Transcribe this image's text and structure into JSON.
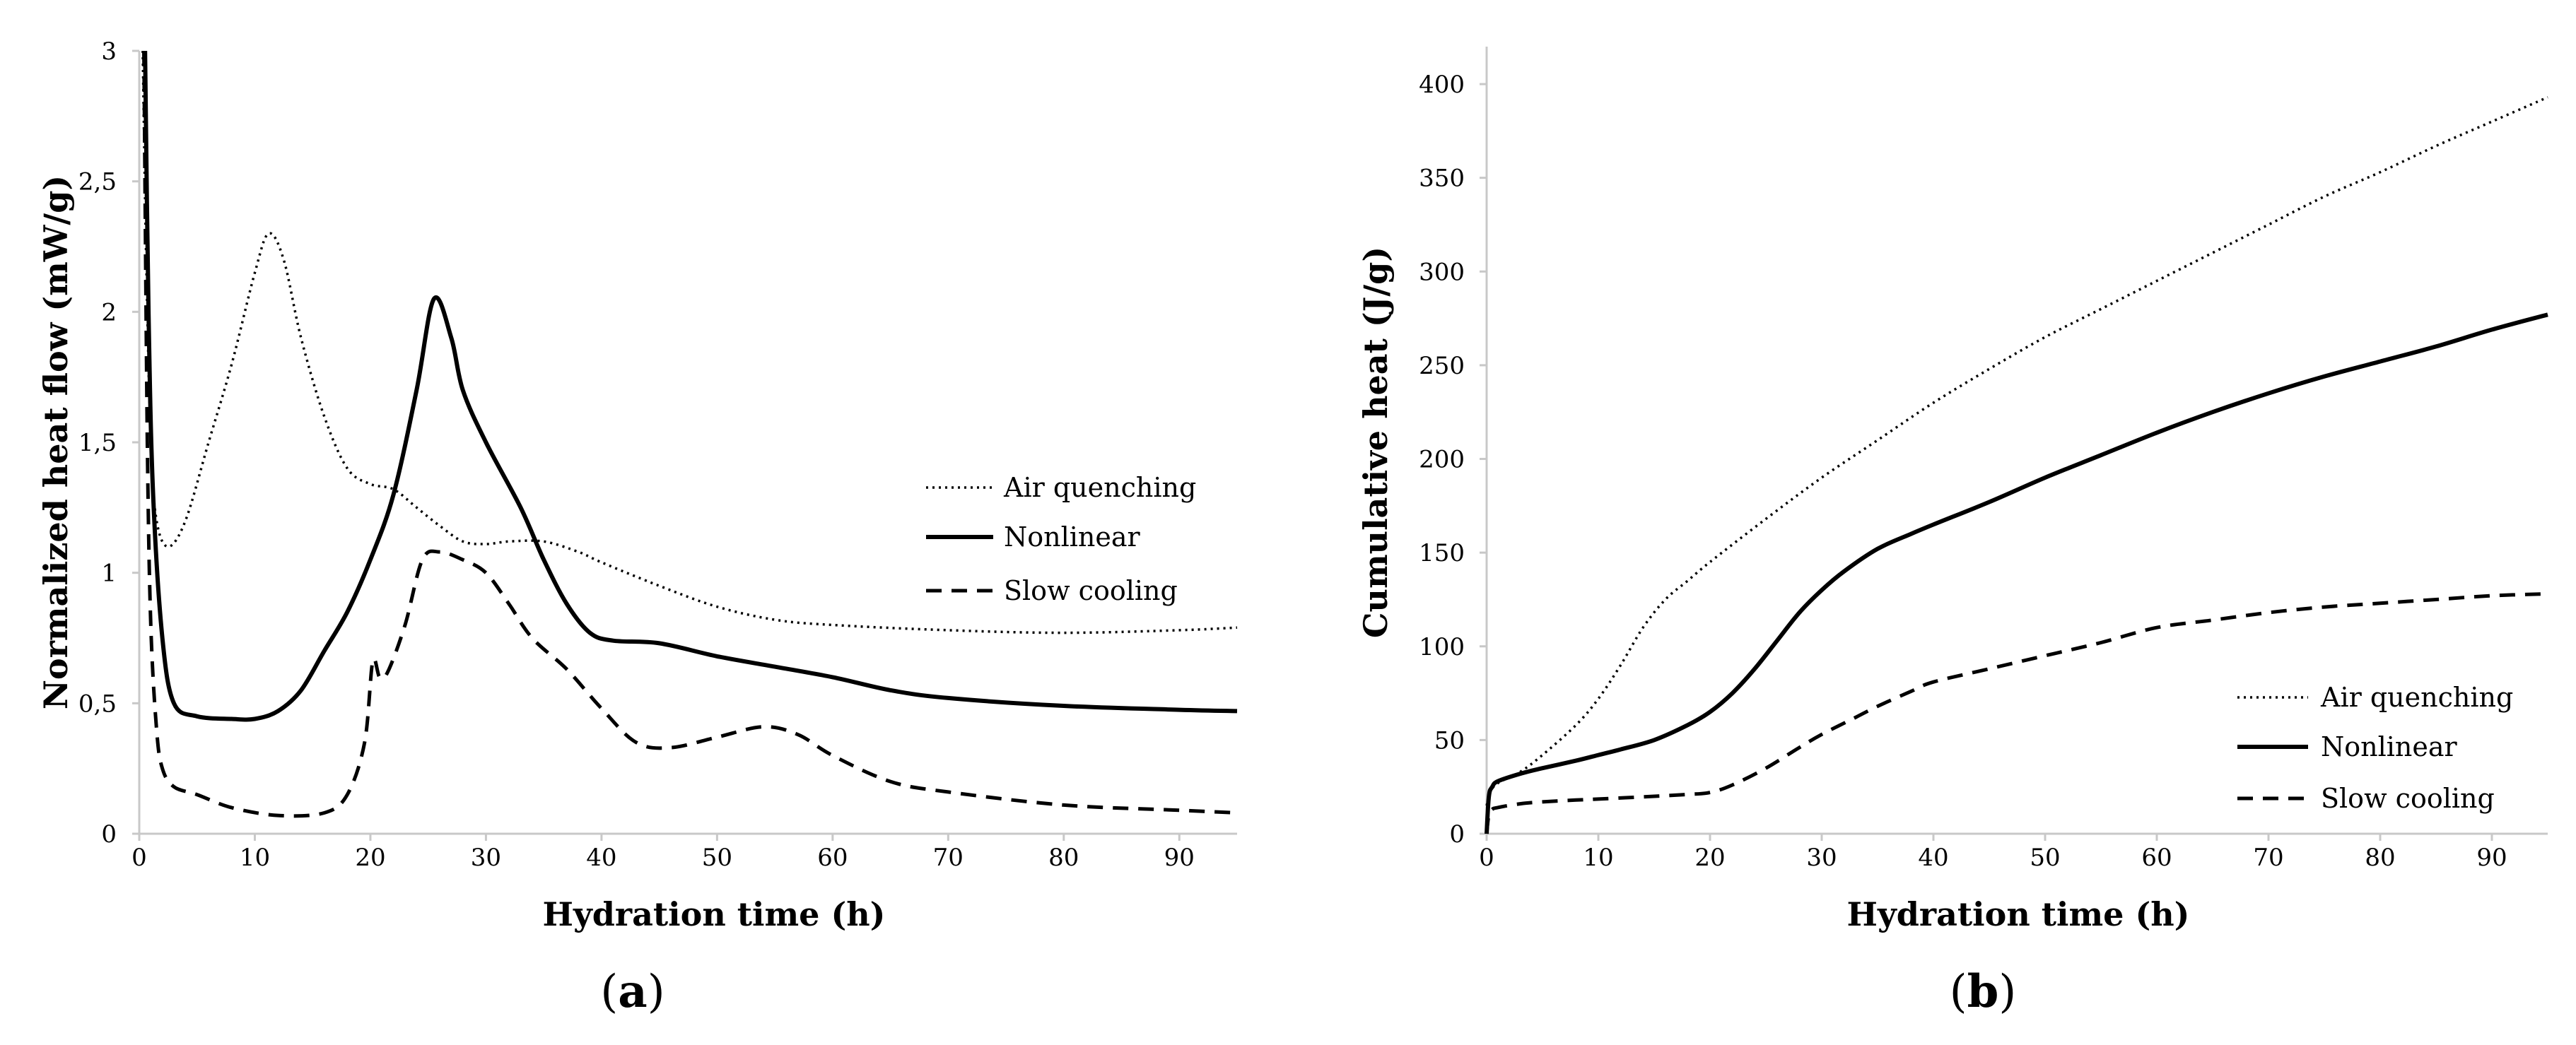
{
  "chart_data": [
    {
      "id": "a",
      "type": "line",
      "label_open": "(",
      "label_letter": "a",
      "label_close": ")",
      "xlabel": "Hydration time (h)",
      "ylabel": "Normalized heat flow (mW/g)",
      "xlim": [
        0,
        95
      ],
      "ylim": [
        0,
        3
      ],
      "xticks": [
        "0",
        "10",
        "20",
        "30",
        "40",
        "50",
        "60",
        "70",
        "80",
        "90"
      ],
      "xtick_values": [
        0,
        10,
        20,
        30,
        40,
        50,
        60,
        70,
        80,
        90
      ],
      "yticks": [
        "0",
        "0,5",
        "1",
        "1,5",
        "2",
        "2,5",
        "3"
      ],
      "ytick_values": [
        0,
        0.5,
        1,
        1.5,
        2,
        2.5,
        3
      ],
      "legend_position": "right-middle",
      "series": [
        {
          "name": "Air quenching",
          "style": "dotted",
          "points": [
            [
              0.3,
              3.0
            ],
            [
              0.6,
              2.2
            ],
            [
              1.0,
              1.5
            ],
            [
              1.5,
              1.2
            ],
            [
              2.5,
              1.1
            ],
            [
              4.0,
              1.2
            ],
            [
              6.0,
              1.5
            ],
            [
              8.0,
              1.8
            ],
            [
              10.0,
              2.15
            ],
            [
              11.2,
              2.3
            ],
            [
              12.5,
              2.2
            ],
            [
              14.0,
              1.9
            ],
            [
              16.0,
              1.6
            ],
            [
              18.0,
              1.4
            ],
            [
              20.0,
              1.34
            ],
            [
              22.0,
              1.32
            ],
            [
              24.0,
              1.25
            ],
            [
              26.0,
              1.18
            ],
            [
              28.0,
              1.12
            ],
            [
              30.0,
              1.11
            ],
            [
              32.0,
              1.12
            ],
            [
              35.0,
              1.12
            ],
            [
              38.0,
              1.08
            ],
            [
              40.0,
              1.04
            ],
            [
              45.0,
              0.95
            ],
            [
              50.0,
              0.87
            ],
            [
              55.0,
              0.82
            ],
            [
              60.0,
              0.8
            ],
            [
              70.0,
              0.78
            ],
            [
              80.0,
              0.77
            ],
            [
              90.0,
              0.78
            ],
            [
              95.0,
              0.79
            ]
          ]
        },
        {
          "name": "Nonlinear",
          "style": "solid",
          "points": [
            [
              0.5,
              3.0
            ],
            [
              0.8,
              2.0
            ],
            [
              1.2,
              1.3
            ],
            [
              2.0,
              0.75
            ],
            [
              3.0,
              0.5
            ],
            [
              5.0,
              0.45
            ],
            [
              8.0,
              0.44
            ],
            [
              10.0,
              0.44
            ],
            [
              12.0,
              0.47
            ],
            [
              14.0,
              0.55
            ],
            [
              16.0,
              0.7
            ],
            [
              18.0,
              0.85
            ],
            [
              20.0,
              1.05
            ],
            [
              22.0,
              1.3
            ],
            [
              24.0,
              1.7
            ],
            [
              25.5,
              2.05
            ],
            [
              27.0,
              1.9
            ],
            [
              28.0,
              1.7
            ],
            [
              30.0,
              1.5
            ],
            [
              33.0,
              1.25
            ],
            [
              35.0,
              1.05
            ],
            [
              37.0,
              0.88
            ],
            [
              39.0,
              0.77
            ],
            [
              41.0,
              0.74
            ],
            [
              45.0,
              0.73
            ],
            [
              50.0,
              0.68
            ],
            [
              55.0,
              0.64
            ],
            [
              60.0,
              0.6
            ],
            [
              65.0,
              0.55
            ],
            [
              70.0,
              0.52
            ],
            [
              80.0,
              0.49
            ],
            [
              90.0,
              0.475
            ],
            [
              95.0,
              0.47
            ]
          ]
        },
        {
          "name": "Slow cooling",
          "style": "dashed",
          "points": [
            [
              0.4,
              3.0
            ],
            [
              0.7,
              1.5
            ],
            [
              1.0,
              0.8
            ],
            [
              1.5,
              0.4
            ],
            [
              2.0,
              0.25
            ],
            [
              3.0,
              0.18
            ],
            [
              5.0,
              0.15
            ],
            [
              8.0,
              0.1
            ],
            [
              12.0,
              0.07
            ],
            [
              16.0,
              0.08
            ],
            [
              18.0,
              0.15
            ],
            [
              19.5,
              0.35
            ],
            [
              20.2,
              0.66
            ],
            [
              20.8,
              0.6
            ],
            [
              21.5,
              0.62
            ],
            [
              23.0,
              0.8
            ],
            [
              24.5,
              1.05
            ],
            [
              26.0,
              1.08
            ],
            [
              28.0,
              1.05
            ],
            [
              30.0,
              1.0
            ],
            [
              32.0,
              0.88
            ],
            [
              34.0,
              0.75
            ],
            [
              37.0,
              0.63
            ],
            [
              40.0,
              0.48
            ],
            [
              43.0,
              0.35
            ],
            [
              46.0,
              0.33
            ],
            [
              50.0,
              0.37
            ],
            [
              54.0,
              0.41
            ],
            [
              57.0,
              0.38
            ],
            [
              60.0,
              0.3
            ],
            [
              65.0,
              0.2
            ],
            [
              70.0,
              0.16
            ],
            [
              80.0,
              0.11
            ],
            [
              90.0,
              0.09
            ],
            [
              95.0,
              0.08
            ]
          ]
        }
      ]
    },
    {
      "id": "b",
      "type": "line",
      "label_open": "(",
      "label_letter": "b",
      "label_close": ")",
      "xlabel": "Hydration time (h)",
      "ylabel": "Cumulative heat (J/g)",
      "xlim": [
        0,
        95
      ],
      "ylim": [
        0,
        420
      ],
      "xticks": [
        "0",
        "10",
        "20",
        "30",
        "40",
        "50",
        "60",
        "70",
        "80",
        "90"
      ],
      "xtick_values": [
        0,
        10,
        20,
        30,
        40,
        50,
        60,
        70,
        80,
        90
      ],
      "yticks": [
        "0",
        "50",
        "100",
        "150",
        "200",
        "250",
        "300",
        "350",
        "400"
      ],
      "ytick_values": [
        0,
        50,
        100,
        150,
        200,
        250,
        300,
        350,
        400
      ],
      "legend_position": "bottom-right",
      "series": [
        {
          "name": "Air quenching",
          "style": "dotted",
          "points": [
            [
              0,
              15
            ],
            [
              0.3,
              22
            ],
            [
              1,
              27
            ],
            [
              3,
              33
            ],
            [
              5,
              42
            ],
            [
              8,
              58
            ],
            [
              10,
              72
            ],
            [
              12,
              90
            ],
            [
              14,
              110
            ],
            [
              16,
              125
            ],
            [
              18,
              135
            ],
            [
              20,
              145
            ],
            [
              25,
              168
            ],
            [
              30,
              190
            ],
            [
              35,
              210
            ],
            [
              40,
              230
            ],
            [
              45,
              248
            ],
            [
              50,
              265
            ],
            [
              55,
              280
            ],
            [
              60,
              295
            ],
            [
              65,
              310
            ],
            [
              70,
              325
            ],
            [
              75,
              340
            ],
            [
              80,
              353
            ],
            [
              85,
              367
            ],
            [
              90,
              380
            ],
            [
              95,
              393
            ]
          ]
        },
        {
          "name": "Nonlinear",
          "style": "solid",
          "points": [
            [
              0,
              0
            ],
            [
              0.2,
              20
            ],
            [
              0.5,
              25
            ],
            [
              1,
              28
            ],
            [
              3,
              32
            ],
            [
              5,
              35
            ],
            [
              8,
              39
            ],
            [
              10,
              42
            ],
            [
              12,
              45
            ],
            [
              15,
              50
            ],
            [
              18,
              58
            ],
            [
              20,
              65
            ],
            [
              22,
              75
            ],
            [
              24,
              88
            ],
            [
              26,
              103
            ],
            [
              28,
              118
            ],
            [
              30,
              130
            ],
            [
              32,
              140
            ],
            [
              35,
              152
            ],
            [
              38,
              160
            ],
            [
              40,
              165
            ],
            [
              45,
              177
            ],
            [
              50,
              190
            ],
            [
              55,
              202
            ],
            [
              60,
              214
            ],
            [
              65,
              225
            ],
            [
              70,
              235
            ],
            [
              75,
              244
            ],
            [
              80,
              252
            ],
            [
              85,
              260
            ],
            [
              90,
              269
            ],
            [
              95,
              277
            ]
          ]
        },
        {
          "name": "Slow cooling",
          "style": "dashed",
          "points": [
            [
              0,
              0
            ],
            [
              0.2,
              10
            ],
            [
              0.5,
              13
            ],
            [
              1,
              14
            ],
            [
              3,
              16
            ],
            [
              5,
              17
            ],
            [
              8,
              18
            ],
            [
              10,
              18.5
            ],
            [
              15,
              20
            ],
            [
              18,
              21
            ],
            [
              20,
              22
            ],
            [
              22,
              26
            ],
            [
              25,
              35
            ],
            [
              28,
              46
            ],
            [
              30,
              53
            ],
            [
              33,
              62
            ],
            [
              35,
              68
            ],
            [
              38,
              76
            ],
            [
              40,
              81
            ],
            [
              45,
              88
            ],
            [
              50,
              95
            ],
            [
              55,
              102
            ],
            [
              60,
              110
            ],
            [
              65,
              114
            ],
            [
              70,
              118
            ],
            [
              75,
              121
            ],
            [
              80,
              123
            ],
            [
              85,
              125
            ],
            [
              90,
              127
            ],
            [
              95,
              128
            ]
          ]
        }
      ]
    }
  ]
}
